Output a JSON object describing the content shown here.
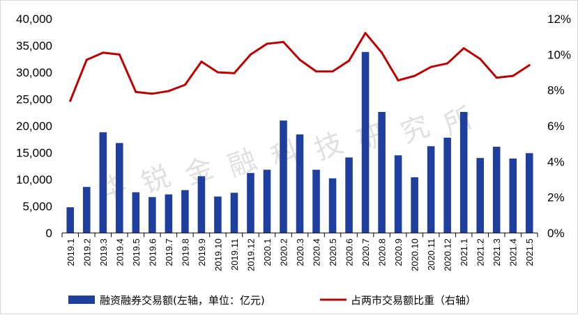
{
  "chart_data": {
    "type": "bar+line",
    "categories": [
      "2019.1",
      "2019.2",
      "2019.3",
      "2019.4",
      "2019.5",
      "2019.6",
      "2019.7",
      "2019.8",
      "2019.9",
      "2019.10",
      "2019.11",
      "2019.12",
      "2020.1",
      "2020.2",
      "2020.3",
      "2020.4",
      "2020.5",
      "2020.6",
      "2020.7",
      "2020.8",
      "2020.9",
      "2020.10",
      "2020.11",
      "2020.12",
      "2021.1",
      "2021.2",
      "2021.3",
      "2021.4",
      "2021.5"
    ],
    "series": [
      {
        "name": "融资融券交易额(左轴，单位：亿元)",
        "kind": "bar",
        "axis": "left",
        "color": "#1f3f9f",
        "values": [
          4800,
          8600,
          18800,
          16800,
          7600,
          6700,
          7200,
          8000,
          10600,
          6800,
          7500,
          11200,
          11800,
          21000,
          18400,
          11800,
          10200,
          14100,
          33800,
          22600,
          14500,
          10400,
          16200,
          17800,
          22600,
          14000,
          16100,
          13900,
          14900
        ]
      },
      {
        "name": "占两市交易额比重（右轴）",
        "kind": "line",
        "axis": "right",
        "color": "#c00000",
        "values": [
          7.4,
          9.7,
          10.1,
          10.0,
          7.9,
          7.8,
          7.95,
          8.3,
          9.6,
          9.0,
          8.95,
          10.0,
          10.6,
          10.7,
          9.7,
          9.05,
          9.05,
          9.65,
          11.2,
          10.1,
          8.55,
          8.8,
          9.3,
          9.5,
          10.35,
          9.75,
          8.7,
          8.8,
          9.4
        ]
      }
    ],
    "ylim": [
      0,
      40000
    ],
    "yticks": [
      "0",
      "5,000",
      "10,000",
      "15,000",
      "20,000",
      "25,000",
      "30,000",
      "35,000",
      "40,000"
    ],
    "ylim_right": [
      0,
      12
    ],
    "yticks_right": [
      "0%",
      "2%",
      "4%",
      "6%",
      "8%",
      "10%",
      "12%"
    ],
    "grid": false,
    "legend_position": "bottom"
  },
  "watermark": "华锐金融科技研究所"
}
